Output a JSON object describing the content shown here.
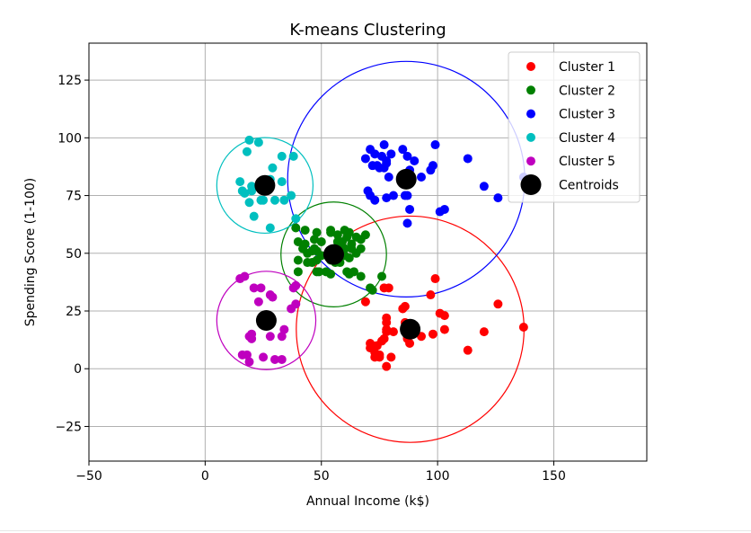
{
  "chart_data": {
    "type": "scatter",
    "title": "K-means Clustering",
    "xlabel": "Annual Income (k$)",
    "ylabel": "Spending Score (1-100)",
    "xlim": [
      -50,
      190
    ],
    "ylim": [
      -40,
      141
    ],
    "xticks": [
      -50,
      0,
      50,
      100,
      150
    ],
    "yticks": [
      -25,
      0,
      25,
      50,
      75,
      100,
      125
    ],
    "grid": true,
    "legend_position": "top-right",
    "series": [
      {
        "name": "Cluster 1",
        "color": "#ff0000",
        "points": [
          [
            69,
            29
          ],
          [
            71,
            11
          ],
          [
            71,
            9
          ],
          [
            72,
            10
          ],
          [
            73,
            7
          ],
          [
            73,
            5
          ],
          [
            74,
            10
          ],
          [
            75,
            5
          ],
          [
            75,
            6
          ],
          [
            76,
            12
          ],
          [
            77,
            13
          ],
          [
            77,
            35
          ],
          [
            78,
            1
          ],
          [
            78,
            16
          ],
          [
            78,
            17
          ],
          [
            78,
            20
          ],
          [
            78,
            22
          ],
          [
            79,
            35
          ],
          [
            80,
            5
          ],
          [
            81,
            16
          ],
          [
            85,
            26
          ],
          [
            86,
            20
          ],
          [
            86,
            27
          ],
          [
            87,
            14
          ],
          [
            87,
            13
          ],
          [
            88,
            15
          ],
          [
            88,
            11
          ],
          [
            93,
            14
          ],
          [
            97,
            32
          ],
          [
            98,
            15
          ],
          [
            99,
            39
          ],
          [
            101,
            24
          ],
          [
            103,
            17
          ],
          [
            103,
            23
          ],
          [
            113,
            8
          ],
          [
            120,
            16
          ],
          [
            126,
            28
          ],
          [
            137,
            18
          ]
        ]
      },
      {
        "name": "Cluster 2",
        "color": "#008000",
        "points": [
          [
            39,
            61
          ],
          [
            40,
            55
          ],
          [
            40,
            47
          ],
          [
            40,
            42
          ],
          [
            42,
            52
          ],
          [
            43,
            60
          ],
          [
            43,
            54
          ],
          [
            44,
            46
          ],
          [
            44,
            50
          ],
          [
            46,
            51
          ],
          [
            46,
            46
          ],
          [
            47,
            56
          ],
          [
            47,
            52
          ],
          [
            48,
            59
          ],
          [
            48,
            51
          ],
          [
            48,
            47
          ],
          [
            48,
            42
          ],
          [
            49,
            42
          ],
          [
            50,
            55
          ],
          [
            50,
            49
          ],
          [
            52,
            42
          ],
          [
            54,
            41
          ],
          [
            54,
            59
          ],
          [
            54,
            48
          ],
          [
            54,
            60
          ],
          [
            54,
            47
          ],
          [
            55,
            50
          ],
          [
            56,
            46
          ],
          [
            57,
            58
          ],
          [
            57,
            55
          ],
          [
            58,
            46
          ],
          [
            58,
            53
          ],
          [
            59,
            55
          ],
          [
            60,
            52
          ],
          [
            60,
            49
          ],
          [
            60,
            60
          ],
          [
            61,
            42
          ],
          [
            61,
            57
          ],
          [
            62,
            59
          ],
          [
            62,
            48
          ],
          [
            62,
            41
          ],
          [
            63,
            52
          ],
          [
            63,
            54
          ],
          [
            64,
            42
          ],
          [
            65,
            57
          ],
          [
            65,
            50
          ],
          [
            67,
            56
          ],
          [
            67,
            52
          ],
          [
            67,
            40
          ],
          [
            69,
            58
          ],
          [
            71,
            35
          ],
          [
            72,
            34
          ],
          [
            76,
            40
          ]
        ]
      },
      {
        "name": "Cluster 3",
        "color": "#0000ff",
        "points": [
          [
            69,
            91
          ],
          [
            70,
            77
          ],
          [
            71,
            75
          ],
          [
            71,
            95
          ],
          [
            72,
            88
          ],
          [
            73,
            93
          ],
          [
            73,
            73
          ],
          [
            74,
            88
          ],
          [
            75,
            87
          ],
          [
            76,
            92
          ],
          [
            77,
            87
          ],
          [
            77,
            97
          ],
          [
            78,
            74
          ],
          [
            78,
            89
          ],
          [
            78,
            90
          ],
          [
            79,
            83
          ],
          [
            80,
            93
          ],
          [
            81,
            75
          ],
          [
            85,
            95
          ],
          [
            86,
            75
          ],
          [
            87,
            92
          ],
          [
            87,
            75
          ],
          [
            87,
            63
          ],
          [
            88,
            86
          ],
          [
            88,
            69
          ],
          [
            90,
            90
          ],
          [
            93,
            83
          ],
          [
            97,
            86
          ],
          [
            98,
            88
          ],
          [
            99,
            97
          ],
          [
            101,
            68
          ],
          [
            103,
            69
          ],
          [
            113,
            91
          ],
          [
            120,
            79
          ],
          [
            126,
            74
          ],
          [
            137,
            83
          ]
        ]
      },
      {
        "name": "Cluster 4",
        "color": "#00bfbf",
        "points": [
          [
            15,
            81
          ],
          [
            16,
            77
          ],
          [
            17,
            76
          ],
          [
            18,
            94
          ],
          [
            19,
            72
          ],
          [
            19,
            99
          ],
          [
            20,
            77
          ],
          [
            20,
            79
          ],
          [
            21,
            66
          ],
          [
            23,
            98
          ],
          [
            24,
            73
          ],
          [
            25,
            73
          ],
          [
            28,
            82
          ],
          [
            28,
            61
          ],
          [
            29,
            87
          ],
          [
            30,
            73
          ],
          [
            33,
            92
          ],
          [
            33,
            81
          ],
          [
            34,
            73
          ],
          [
            37,
            75
          ],
          [
            38,
            92
          ],
          [
            39,
            65
          ]
        ]
      },
      {
        "name": "Cluster 5",
        "color": "#bf00bf",
        "points": [
          [
            15,
            39
          ],
          [
            16,
            6
          ],
          [
            17,
            40
          ],
          [
            18,
            6
          ],
          [
            19,
            3
          ],
          [
            19,
            14
          ],
          [
            20,
            15
          ],
          [
            20,
            13
          ],
          [
            21,
            35
          ],
          [
            23,
            29
          ],
          [
            24,
            35
          ],
          [
            25,
            5
          ],
          [
            28,
            14
          ],
          [
            28,
            32
          ],
          [
            29,
            31
          ],
          [
            30,
            4
          ],
          [
            33,
            4
          ],
          [
            33,
            14
          ],
          [
            34,
            17
          ],
          [
            37,
            26
          ],
          [
            38,
            35
          ],
          [
            39,
            36
          ],
          [
            39,
            28
          ]
        ]
      }
    ],
    "centroids": {
      "name": "Centroids",
      "color": "#000000",
      "points": [
        [
          88.2,
          17.1
        ],
        [
          55.3,
          49.5
        ],
        [
          86.5,
          82.1
        ],
        [
          25.7,
          79.4
        ],
        [
          26.3,
          20.9
        ]
      ]
    },
    "circles": [
      {
        "center": [
          88.2,
          17.1
        ],
        "radius": 49,
        "color": "#ff0000"
      },
      {
        "center": [
          55.3,
          49.5
        ],
        "radius": 22.7,
        "color": "#008000"
      },
      {
        "center": [
          86.5,
          82.1
        ],
        "radius": 51,
        "color": "#0000ff"
      },
      {
        "center": [
          25.7,
          79.4
        ],
        "radius": 20.7,
        "color": "#00bfbf"
      },
      {
        "center": [
          26.3,
          20.9
        ],
        "radius": 21.3,
        "color": "#bf00bf"
      }
    ]
  }
}
